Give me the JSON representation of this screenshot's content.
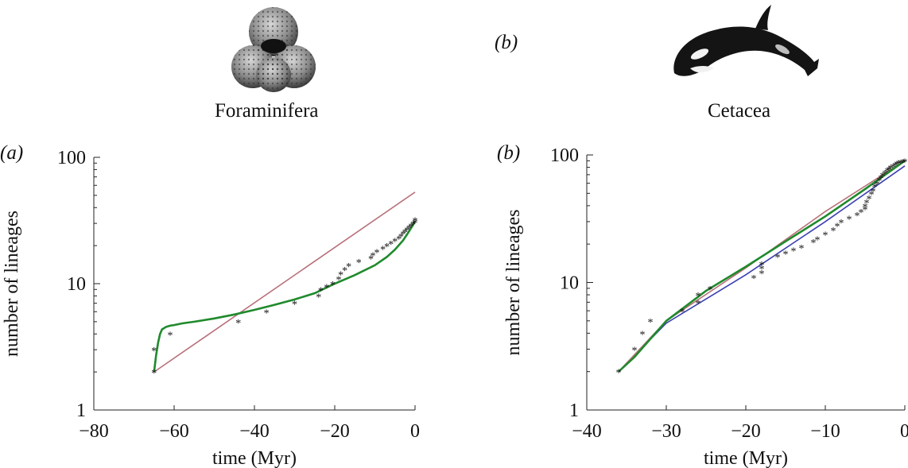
{
  "figure": {
    "top_panel_label": "(b)",
    "organisms": [
      {
        "name": "Foraminifera",
        "icon": "foraminifera-shell-icon"
      },
      {
        "name": "Cetacea",
        "icon": "orca-whale-icon"
      }
    ]
  },
  "chart_data": [
    {
      "type": "line",
      "panel_label": "(a)",
      "xlabel": "time (Myr)",
      "ylabel": "number of lineages",
      "xlim": [
        -80,
        0
      ],
      "ylim": [
        1,
        100
      ],
      "yscale": "log",
      "grid": false,
      "xticks": [
        "−80",
        "−60",
        "−40",
        "−20",
        "0"
      ],
      "xtick_values": [
        -80,
        -60,
        -40,
        -20,
        0
      ],
      "yticks": [
        "1",
        "10",
        "100"
      ],
      "ytick_values": [
        1,
        10,
        100
      ],
      "points": [
        [
          -65,
          2
        ],
        [
          -65,
          3
        ],
        [
          -61,
          4
        ],
        [
          -44,
          5
        ],
        [
          -37,
          6
        ],
        [
          -30,
          7
        ],
        [
          -24,
          8
        ],
        [
          -23.5,
          9
        ],
        [
          -22,
          9.5
        ],
        [
          -20.5,
          10
        ],
        [
          -19,
          11
        ],
        [
          -18.5,
          12
        ],
        [
          -17.5,
          13
        ],
        [
          -16.5,
          14
        ],
        [
          -14,
          15
        ],
        [
          -11,
          16
        ],
        [
          -10.5,
          17
        ],
        [
          -9.5,
          18
        ],
        [
          -8,
          19
        ],
        [
          -7,
          20
        ],
        [
          -6,
          21
        ],
        [
          -5,
          22
        ],
        [
          -4,
          23
        ],
        [
          -3.5,
          24
        ],
        [
          -3,
          25
        ],
        [
          -2.5,
          26
        ],
        [
          -2,
          27
        ],
        [
          -1.5,
          28
        ],
        [
          -1,
          29
        ],
        [
          -0.5,
          30
        ],
        [
          0,
          31
        ],
        [
          0,
          32
        ]
      ],
      "series": [
        {
          "color": "#b8717a",
          "x": [
            -65,
            0
          ],
          "y": [
            2,
            53
          ]
        },
        {
          "color": "#1f8a2c",
          "x": [
            -65,
            -64.5,
            -64,
            -63.5,
            -63,
            -62,
            -61,
            -60,
            -58,
            -55,
            -50,
            -45,
            -40,
            -35,
            -30,
            -25,
            -20,
            -15,
            -10,
            -7,
            -5,
            -3,
            -2,
            -1,
            0
          ],
          "y": [
            2,
            2.7,
            3.4,
            4.0,
            4.35,
            4.55,
            4.65,
            4.7,
            4.85,
            5.0,
            5.3,
            5.7,
            6.2,
            6.8,
            7.5,
            8.4,
            10,
            11.7,
            14,
            16.3,
            18.6,
            22,
            24.5,
            27.5,
            31
          ]
        }
      ]
    },
    {
      "type": "line",
      "panel_label": "(b)",
      "xlabel": "time (Myr)",
      "ylabel": "number of lineages",
      "xlim": [
        -40,
        0
      ],
      "ylim": [
        1,
        100
      ],
      "yscale": "log",
      "grid": false,
      "xticks": [
        "−40",
        "−30",
        "−20",
        "−10",
        "0"
      ],
      "xtick_values": [
        -40,
        -30,
        -20,
        -10,
        0
      ],
      "yticks": [
        "1",
        "10",
        "100"
      ],
      "ytick_values": [
        1,
        10,
        100
      ],
      "points": [
        [
          -36,
          2
        ],
        [
          -34,
          3
        ],
        [
          -33,
          4
        ],
        [
          -32,
          5
        ],
        [
          -28,
          6
        ],
        [
          -26,
          7
        ],
        [
          -26,
          8
        ],
        [
          -24.5,
          9
        ],
        [
          -19,
          11
        ],
        [
          -18,
          12
        ],
        [
          -18,
          13
        ],
        [
          -18,
          14
        ],
        [
          -16,
          16
        ],
        [
          -15,
          17
        ],
        [
          -14,
          18
        ],
        [
          -13,
          19
        ],
        [
          -11.5,
          21
        ],
        [
          -11,
          22
        ],
        [
          -10,
          24
        ],
        [
          -9,
          26
        ],
        [
          -8.5,
          28
        ],
        [
          -8,
          30
        ],
        [
          -7,
          32
        ],
        [
          -6,
          34
        ],
        [
          -5.5,
          36
        ],
        [
          -5,
          38
        ],
        [
          -5,
          40
        ],
        [
          -4.8,
          43
        ],
        [
          -4.5,
          46
        ],
        [
          -4.2,
          50
        ],
        [
          -4,
          53
        ],
        [
          -3.8,
          57
        ],
        [
          -3.5,
          60
        ],
        [
          -3.2,
          64
        ],
        [
          -3,
          67
        ],
        [
          -2.8,
          70
        ],
        [
          -2.5,
          73
        ],
        [
          -2.2,
          76
        ],
        [
          -2,
          78
        ],
        [
          -1.8,
          80
        ],
        [
          -1.5,
          82
        ],
        [
          -1.2,
          84
        ],
        [
          -1,
          86
        ],
        [
          -0.8,
          87
        ],
        [
          -0.5,
          88
        ],
        [
          -0.2,
          89
        ],
        [
          0,
          90
        ]
      ],
      "series": [
        {
          "color": "#3a3fb0",
          "x": [
            -36,
            -30,
            -20,
            -10,
            0
          ],
          "y": [
            2,
            4.8,
            11.5,
            30,
            82
          ]
        },
        {
          "color": "#b8717a",
          "x": [
            -36,
            -30,
            -20,
            -10,
            0
          ],
          "y": [
            2,
            5.0,
            13,
            36,
            90
          ]
        },
        {
          "color": "#1f8a2c",
          "x": [
            -36,
            -34,
            -30,
            -25,
            -20,
            -15,
            -10,
            -5,
            0
          ],
          "y": [
            2,
            2.6,
            5.0,
            8.6,
            13.3,
            21,
            33,
            54,
            90
          ]
        }
      ]
    }
  ]
}
